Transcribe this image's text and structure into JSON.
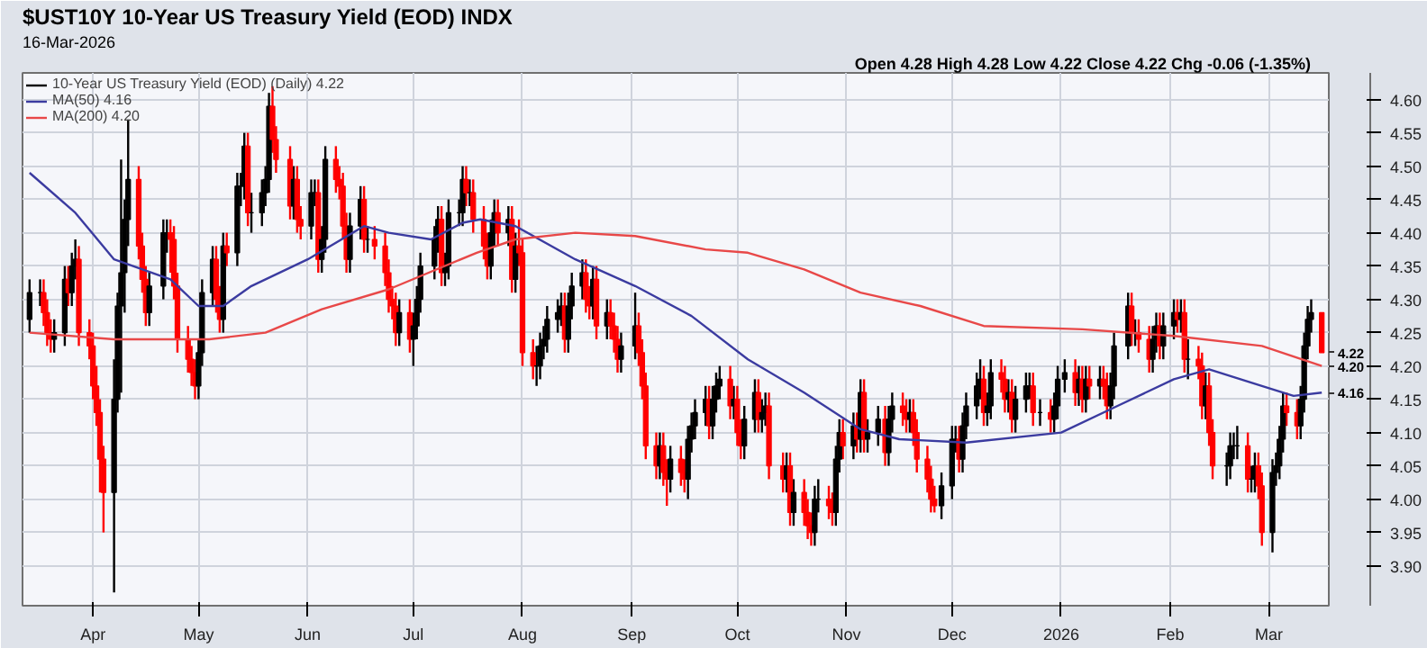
{
  "chart_data": {
    "type": "candlestick",
    "title": "$UST10Y 10-Year US Treasury Yield (EOD) INDX",
    "subtitle": "16-Mar-2026",
    "annotations": [
      "Open 4.28  High 4.28  Low 4.22  Close 4.22  Chg -0.06 (-1.35%)",
      "4.22",
      "4.16",
      "4.20"
    ],
    "xlim": [
      "2025-03-12",
      "2026-03-18"
    ],
    "xticks": [
      {
        "value": "2025-04-01",
        "label": "Apr"
      },
      {
        "value": "2025-05-01",
        "label": "May"
      },
      {
        "value": "2025-06-01",
        "label": "Jun"
      },
      {
        "value": "2025-07-01",
        "label": "Jul"
      },
      {
        "value": "2025-08-01",
        "label": "Aug"
      },
      {
        "value": "2025-09-01",
        "label": "Sep"
      },
      {
        "value": "2025-10-01",
        "label": "Oct"
      },
      {
        "value": "2025-11-01",
        "label": "Nov"
      },
      {
        "value": "2025-12-01",
        "label": "Dec"
      },
      {
        "value": "2026-01-01",
        "label": "2026"
      },
      {
        "value": "2026-02-01",
        "label": "Feb"
      },
      {
        "value": "2026-03-01",
        "label": "Mar"
      }
    ],
    "ylim": [
      3.84,
      4.64
    ],
    "yticks": [
      {
        "value": 3.9,
        "label": "3.90"
      },
      {
        "value": 3.95,
        "label": "3.95"
      },
      {
        "value": 4.0,
        "label": "4.00"
      },
      {
        "value": 4.05,
        "label": "4.05"
      },
      {
        "value": 4.1,
        "label": "4.10"
      },
      {
        "value": 4.15,
        "label": "4.15"
      },
      {
        "value": 4.2,
        "label": "4.20"
      },
      {
        "value": 4.25,
        "label": "4.25"
      },
      {
        "value": 4.3,
        "label": "4.30"
      },
      {
        "value": 4.35,
        "label": "4.35"
      },
      {
        "value": 4.4,
        "label": "4.40"
      },
      {
        "value": 4.45,
        "label": "4.45"
      },
      {
        "value": 4.5,
        "label": "4.50"
      },
      {
        "value": 4.55,
        "label": "4.55"
      },
      {
        "value": 4.6,
        "label": "4.60"
      }
    ],
    "grid": true,
    "legend": "top left",
    "series": [
      {
        "name": "10-Year US Treasury Yield (EOD) (Daily) 4.22",
        "x": [
          "2025-03-14",
          "2025-03-17",
          "2025-03-18",
          "2025-03-19",
          "2025-03-20",
          "2025-03-21",
          "2025-03-24",
          "2025-03-25",
          "2025-03-26",
          "2025-03-27",
          "2025-03-28",
          "2025-03-31",
          "2025-04-01",
          "2025-04-02",
          "2025-04-03",
          "2025-04-04",
          "2025-04-07",
          "2025-04-08",
          "2025-04-09",
          "2025-04-10",
          "2025-04-11",
          "2025-04-14",
          "2025-04-15",
          "2025-04-16",
          "2025-04-17",
          "2025-04-21",
          "2025-04-22",
          "2025-04-23",
          "2025-04-24",
          "2025-04-25",
          "2025-04-28",
          "2025-04-29",
          "2025-04-30",
          "2025-05-01",
          "2025-05-02",
          "2025-05-05",
          "2025-05-06",
          "2025-05-07",
          "2025-05-08",
          "2025-05-09",
          "2025-05-12",
          "2025-05-13",
          "2025-05-14",
          "2025-05-15",
          "2025-05-16",
          "2025-05-19",
          "2025-05-20",
          "2025-05-21",
          "2025-05-22",
          "2025-05-23",
          "2025-05-27",
          "2025-05-28",
          "2025-05-29",
          "2025-05-30",
          "2025-06-02",
          "2025-06-03",
          "2025-06-04",
          "2025-06-05",
          "2025-06-06",
          "2025-06-09",
          "2025-06-10",
          "2025-06-11",
          "2025-06-12",
          "2025-06-13",
          "2025-06-16",
          "2025-06-17",
          "2025-06-18",
          "2025-06-20",
          "2025-06-23",
          "2025-06-24",
          "2025-06-25",
          "2025-06-26",
          "2025-06-27",
          "2025-06-30",
          "2025-07-01",
          "2025-07-02",
          "2025-07-03",
          "2025-07-07",
          "2025-07-08",
          "2025-07-09",
          "2025-07-10",
          "2025-07-11",
          "2025-07-14",
          "2025-07-15",
          "2025-07-16",
          "2025-07-17",
          "2025-07-18",
          "2025-07-21",
          "2025-07-22",
          "2025-07-23",
          "2025-07-24",
          "2025-07-25",
          "2025-07-28",
          "2025-07-29",
          "2025-07-30",
          "2025-07-31",
          "2025-08-01",
          "2025-08-04",
          "2025-08-05",
          "2025-08-06",
          "2025-08-07",
          "2025-08-08",
          "2025-08-11",
          "2025-08-12",
          "2025-08-13",
          "2025-08-14",
          "2025-08-15",
          "2025-08-18",
          "2025-08-19",
          "2025-08-20",
          "2025-08-21",
          "2025-08-22",
          "2025-08-25",
          "2025-08-26",
          "2025-08-27",
          "2025-08-28",
          "2025-08-29",
          "2025-09-02",
          "2025-09-03",
          "2025-09-04",
          "2025-09-05",
          "2025-09-08",
          "2025-09-09",
          "2025-09-10",
          "2025-09-11",
          "2025-09-12",
          "2025-09-15",
          "2025-09-16",
          "2025-09-17",
          "2025-09-18",
          "2025-09-19",
          "2025-09-22",
          "2025-09-23",
          "2025-09-24",
          "2025-09-25",
          "2025-09-26",
          "2025-09-29",
          "2025-09-30",
          "2025-10-01",
          "2025-10-02",
          "2025-10-03",
          "2025-10-06",
          "2025-10-07",
          "2025-10-08",
          "2025-10-09",
          "2025-10-10",
          "2025-10-14",
          "2025-10-15",
          "2025-10-16",
          "2025-10-17",
          "2025-10-20",
          "2025-10-21",
          "2025-10-22",
          "2025-10-23",
          "2025-10-24",
          "2025-10-27",
          "2025-10-28",
          "2025-10-29",
          "2025-10-30",
          "2025-10-31",
          "2025-11-03",
          "2025-11-04",
          "2025-11-05",
          "2025-11-06",
          "2025-11-07",
          "2025-11-10",
          "2025-11-12",
          "2025-11-13",
          "2025-11-14",
          "2025-11-17",
          "2025-11-18",
          "2025-11-19",
          "2025-11-20",
          "2025-11-21",
          "2025-11-24",
          "2025-11-25",
          "2025-11-26",
          "2025-11-28",
          "2025-12-01",
          "2025-12-02",
          "2025-12-03",
          "2025-12-04",
          "2025-12-05",
          "2025-12-08",
          "2025-12-09",
          "2025-12-10",
          "2025-12-11",
          "2025-12-12",
          "2025-12-15",
          "2025-12-16",
          "2025-12-17",
          "2025-12-18",
          "2025-12-19",
          "2025-12-22",
          "2025-12-23",
          "2025-12-24",
          "2025-12-26",
          "2025-12-29",
          "2025-12-30",
          "2025-12-31",
          "2026-01-02",
          "2026-01-05",
          "2026-01-06",
          "2026-01-07",
          "2026-01-08",
          "2026-01-09",
          "2026-01-12",
          "2026-01-13",
          "2026-01-14",
          "2026-01-15",
          "2026-01-16",
          "2026-01-20",
          "2026-01-21",
          "2026-01-22",
          "2026-01-23",
          "2026-01-26",
          "2026-01-27",
          "2026-01-28",
          "2026-01-29",
          "2026-01-30",
          "2026-02-02",
          "2026-02-03",
          "2026-02-04",
          "2026-02-05",
          "2026-02-06",
          "2026-02-09",
          "2026-02-10",
          "2026-02-11",
          "2026-02-12",
          "2026-02-13",
          "2026-02-17",
          "2026-02-18",
          "2026-02-19",
          "2026-02-20",
          "2026-02-23",
          "2026-02-24",
          "2026-02-25",
          "2026-02-26",
          "2026-02-27",
          "2026-03-02",
          "2026-03-03",
          "2026-03-04",
          "2026-03-05",
          "2026-03-06",
          "2026-03-09",
          "2026-03-10",
          "2026-03-11",
          "2026-03-12",
          "2026-03-13",
          "2026-03-16"
        ],
        "ohlc": [
          [
            4.27,
            4.33,
            4.25,
            4.31
          ],
          [
            4.31,
            4.33,
            4.29,
            4.31
          ],
          [
            4.31,
            4.33,
            4.26,
            4.28
          ],
          [
            4.28,
            4.3,
            4.23,
            4.25
          ],
          [
            4.25,
            4.27,
            4.22,
            4.24
          ],
          [
            4.24,
            4.27,
            4.22,
            4.25
          ],
          [
            4.25,
            4.35,
            4.23,
            4.33
          ],
          [
            4.33,
            4.35,
            4.29,
            4.31
          ],
          [
            4.31,
            4.37,
            4.29,
            4.35
          ],
          [
            4.35,
            4.39,
            4.33,
            4.36
          ],
          [
            4.36,
            4.38,
            4.23,
            4.25
          ],
          [
            4.25,
            4.27,
            4.21,
            4.23
          ],
          [
            4.23,
            4.25,
            4.15,
            4.17
          ],
          [
            4.17,
            4.2,
            4.11,
            4.13
          ],
          [
            4.13,
            4.15,
            4.01,
            4.06
          ],
          [
            4.06,
            4.08,
            3.95,
            4.01
          ],
          [
            4.01,
            4.21,
            3.86,
            4.15
          ],
          [
            4.15,
            4.31,
            4.13,
            4.29
          ],
          [
            4.29,
            4.51,
            4.16,
            4.34
          ],
          [
            4.34,
            4.45,
            4.28,
            4.42
          ],
          [
            4.42,
            4.57,
            4.38,
            4.48
          ],
          [
            4.48,
            4.5,
            4.36,
            4.38
          ],
          [
            4.38,
            4.4,
            4.31,
            4.33
          ],
          [
            4.33,
            4.35,
            4.26,
            4.28
          ],
          [
            4.28,
            4.34,
            4.26,
            4.32
          ],
          [
            4.32,
            4.42,
            4.3,
            4.4
          ],
          [
            4.4,
            4.42,
            4.37,
            4.4
          ],
          [
            4.4,
            4.42,
            4.34,
            4.39
          ],
          [
            4.39,
            4.41,
            4.3,
            4.32
          ],
          [
            4.32,
            4.34,
            4.22,
            4.24
          ],
          [
            4.24,
            4.26,
            4.19,
            4.21
          ],
          [
            4.21,
            4.23,
            4.17,
            4.19
          ],
          [
            4.19,
            4.21,
            4.15,
            4.17
          ],
          [
            4.17,
            4.24,
            4.15,
            4.22
          ],
          [
            4.22,
            4.33,
            4.2,
            4.31
          ],
          [
            4.31,
            4.38,
            4.29,
            4.36
          ],
          [
            4.36,
            4.38,
            4.28,
            4.3
          ],
          [
            4.3,
            4.32,
            4.25,
            4.27
          ],
          [
            4.27,
            4.4,
            4.25,
            4.38
          ],
          [
            4.38,
            4.4,
            4.35,
            4.37
          ],
          [
            4.37,
            4.49,
            4.35,
            4.47
          ],
          [
            4.47,
            4.49,
            4.44,
            4.47
          ],
          [
            4.47,
            4.55,
            4.45,
            4.53
          ],
          [
            4.53,
            4.55,
            4.41,
            4.43
          ],
          [
            4.43,
            4.46,
            4.4,
            4.43
          ],
          [
            4.43,
            4.48,
            4.41,
            4.46
          ],
          [
            4.46,
            4.5,
            4.44,
            4.48
          ],
          [
            4.48,
            4.61,
            4.46,
            4.59
          ],
          [
            4.59,
            4.62,
            4.52,
            4.54
          ],
          [
            4.54,
            4.56,
            4.49,
            4.51
          ],
          [
            4.51,
            4.53,
            4.42,
            4.44
          ],
          [
            4.44,
            4.5,
            4.42,
            4.48
          ],
          [
            4.48,
            4.5,
            4.4,
            4.42
          ],
          [
            4.42,
            4.44,
            4.39,
            4.41
          ],
          [
            4.41,
            4.48,
            4.39,
            4.46
          ],
          [
            4.46,
            4.48,
            4.44,
            4.46
          ],
          [
            4.46,
            4.48,
            4.34,
            4.36
          ],
          [
            4.36,
            4.41,
            4.34,
            4.39
          ],
          [
            4.39,
            4.53,
            4.37,
            4.51
          ],
          [
            4.51,
            4.53,
            4.46,
            4.48
          ],
          [
            4.48,
            4.5,
            4.45,
            4.47
          ],
          [
            4.47,
            4.49,
            4.39,
            4.41
          ],
          [
            4.41,
            4.43,
            4.34,
            4.36
          ],
          [
            4.36,
            4.43,
            4.34,
            4.41
          ],
          [
            4.41,
            4.47,
            4.39,
            4.45
          ],
          [
            4.45,
            4.47,
            4.37,
            4.39
          ],
          [
            4.39,
            4.41,
            4.37,
            4.39
          ],
          [
            4.39,
            4.41,
            4.36,
            4.38
          ],
          [
            4.38,
            4.4,
            4.32,
            4.34
          ],
          [
            4.34,
            4.36,
            4.28,
            4.3
          ],
          [
            4.3,
            4.32,
            4.27,
            4.29
          ],
          [
            4.29,
            4.31,
            4.23,
            4.25
          ],
          [
            4.25,
            4.3,
            4.23,
            4.28
          ],
          [
            4.28,
            4.3,
            4.22,
            4.24
          ],
          [
            4.24,
            4.28,
            4.2,
            4.26
          ],
          [
            4.26,
            4.32,
            4.24,
            4.3
          ],
          [
            4.3,
            4.37,
            4.28,
            4.35
          ],
          [
            4.35,
            4.41,
            4.33,
            4.39
          ],
          [
            4.39,
            4.44,
            4.37,
            4.42
          ],
          [
            4.42,
            4.44,
            4.32,
            4.34
          ],
          [
            4.34,
            4.37,
            4.32,
            4.35
          ],
          [
            4.35,
            4.45,
            4.33,
            4.43
          ],
          [
            4.43,
            4.45,
            4.41,
            4.43
          ],
          [
            4.43,
            4.5,
            4.41,
            4.48
          ],
          [
            4.48,
            4.5,
            4.44,
            4.46
          ],
          [
            4.46,
            4.48,
            4.44,
            4.46
          ],
          [
            4.46,
            4.48,
            4.4,
            4.42
          ],
          [
            4.42,
            4.44,
            4.36,
            4.38
          ],
          [
            4.38,
            4.4,
            4.33,
            4.35
          ],
          [
            4.35,
            4.42,
            4.33,
            4.4
          ],
          [
            4.4,
            4.45,
            4.38,
            4.43
          ],
          [
            4.43,
            4.45,
            4.38,
            4.4
          ],
          [
            4.4,
            4.44,
            4.38,
            4.42
          ],
          [
            4.42,
            4.44,
            4.31,
            4.33
          ],
          [
            4.33,
            4.4,
            4.31,
            4.38
          ],
          [
            4.38,
            4.42,
            4.35,
            4.37
          ],
          [
            4.37,
            4.39,
            4.2,
            4.22
          ],
          [
            4.22,
            4.24,
            4.18,
            4.2
          ],
          [
            4.2,
            4.23,
            4.17,
            4.2
          ],
          [
            4.2,
            4.25,
            4.18,
            4.23
          ],
          [
            4.23,
            4.26,
            4.21,
            4.24
          ],
          [
            4.24,
            4.29,
            4.22,
            4.27
          ],
          [
            4.27,
            4.3,
            4.25,
            4.28
          ],
          [
            4.28,
            4.31,
            4.26,
            4.29
          ],
          [
            4.29,
            4.31,
            4.22,
            4.24
          ],
          [
            4.24,
            4.31,
            4.22,
            4.29
          ],
          [
            4.29,
            4.34,
            4.27,
            4.32
          ],
          [
            4.32,
            4.36,
            4.3,
            4.34
          ],
          [
            4.34,
            4.36,
            4.28,
            4.3
          ],
          [
            4.3,
            4.32,
            4.27,
            4.29
          ],
          [
            4.29,
            4.35,
            4.27,
            4.33
          ],
          [
            4.33,
            4.35,
            4.24,
            4.26
          ],
          [
            4.26,
            4.3,
            4.24,
            4.28
          ],
          [
            4.28,
            4.3,
            4.24,
            4.26
          ],
          [
            4.26,
            4.28,
            4.22,
            4.24
          ],
          [
            4.24,
            4.26,
            4.19,
            4.21
          ],
          [
            4.21,
            4.25,
            4.19,
            4.23
          ],
          [
            4.23,
            4.31,
            4.21,
            4.26
          ],
          [
            4.26,
            4.28,
            4.2,
            4.22
          ],
          [
            4.22,
            4.24,
            4.15,
            4.17
          ],
          [
            4.17,
            4.19,
            4.06,
            4.08
          ],
          [
            4.08,
            4.1,
            4.03,
            4.05
          ],
          [
            4.05,
            4.1,
            4.03,
            4.08
          ],
          [
            4.08,
            4.1,
            4.02,
            4.04
          ],
          [
            4.04,
            4.06,
            3.99,
            4.03
          ],
          [
            4.03,
            4.08,
            4.01,
            4.06
          ],
          [
            4.06,
            4.08,
            4.02,
            4.04
          ],
          [
            4.04,
            4.06,
            4.01,
            4.03
          ],
          [
            4.03,
            4.11,
            4.0,
            4.09
          ],
          [
            4.09,
            4.13,
            4.07,
            4.11
          ],
          [
            4.11,
            4.15,
            4.09,
            4.13
          ],
          [
            4.13,
            4.17,
            4.11,
            4.15
          ],
          [
            4.15,
            4.17,
            4.09,
            4.11
          ],
          [
            4.11,
            4.17,
            4.09,
            4.15
          ],
          [
            4.15,
            4.19,
            4.13,
            4.17
          ],
          [
            4.17,
            4.2,
            4.15,
            4.18
          ],
          [
            4.18,
            4.2,
            4.12,
            4.14
          ],
          [
            4.14,
            4.17,
            4.12,
            4.15
          ],
          [
            4.15,
            4.17,
            4.08,
            4.1
          ],
          [
            4.1,
            4.12,
            4.06,
            4.08
          ],
          [
            4.08,
            4.14,
            4.06,
            4.12
          ],
          [
            4.12,
            4.18,
            4.1,
            4.16
          ],
          [
            4.16,
            4.18,
            4.1,
            4.12
          ],
          [
            4.12,
            4.15,
            4.1,
            4.13
          ],
          [
            4.13,
            4.16,
            4.11,
            4.14
          ],
          [
            4.14,
            4.16,
            4.03,
            4.05
          ],
          [
            4.05,
            4.07,
            4.01,
            4.03
          ],
          [
            4.03,
            4.07,
            4.01,
            4.05
          ],
          [
            4.05,
            4.07,
            3.96,
            3.98
          ],
          [
            3.98,
            4.03,
            3.96,
            4.01
          ],
          [
            4.01,
            4.03,
            3.96,
            3.98
          ],
          [
            3.98,
            4.0,
            3.94,
            3.96
          ],
          [
            3.96,
            3.98,
            3.93,
            3.95
          ],
          [
            3.95,
            4.02,
            3.93,
            4.0
          ],
          [
            4.0,
            4.03,
            3.98,
            4.0
          ],
          [
            4.0,
            4.02,
            3.97,
            3.99
          ],
          [
            3.99,
            4.01,
            3.96,
            3.98
          ],
          [
            3.98,
            4.08,
            3.96,
            4.06
          ],
          [
            4.06,
            4.12,
            4.04,
            4.1
          ],
          [
            4.1,
            4.12,
            4.06,
            4.08
          ],
          [
            4.08,
            4.13,
            4.06,
            4.11
          ],
          [
            4.11,
            4.13,
            4.07,
            4.09
          ],
          [
            4.09,
            4.18,
            4.07,
            4.16
          ],
          [
            4.16,
            4.18,
            4.07,
            4.09
          ],
          [
            4.09,
            4.12,
            4.07,
            4.1
          ],
          [
            4.1,
            4.14,
            4.08,
            4.12
          ],
          [
            4.12,
            4.14,
            4.05,
            4.07
          ],
          [
            4.07,
            4.14,
            4.05,
            4.12
          ],
          [
            4.12,
            4.16,
            4.1,
            4.14
          ],
          [
            4.14,
            4.16,
            4.11,
            4.13
          ],
          [
            4.13,
            4.15,
            4.1,
            4.12
          ],
          [
            4.12,
            4.15,
            4.1,
            4.13
          ],
          [
            4.13,
            4.15,
            4.08,
            4.1
          ],
          [
            4.1,
            4.12,
            4.04,
            4.06
          ],
          [
            4.06,
            4.08,
            4.01,
            4.03
          ],
          [
            4.03,
            4.05,
            3.98,
            4.0
          ],
          [
            4.0,
            4.02,
            3.98,
            3.99
          ],
          [
            3.99,
            4.04,
            3.97,
            4.02
          ],
          [
            4.02,
            4.11,
            4.0,
            4.09
          ],
          [
            4.09,
            4.11,
            4.07,
            4.09
          ],
          [
            4.09,
            4.11,
            4.04,
            4.06
          ],
          [
            4.06,
            4.13,
            4.04,
            4.11
          ],
          [
            4.11,
            4.16,
            4.09,
            4.14
          ],
          [
            4.14,
            4.19,
            4.12,
            4.17
          ],
          [
            4.17,
            4.21,
            4.15,
            4.18
          ],
          [
            4.18,
            4.2,
            4.11,
            4.13
          ],
          [
            4.13,
            4.16,
            4.11,
            4.14
          ],
          [
            4.14,
            4.21,
            4.12,
            4.19
          ],
          [
            4.19,
            4.21,
            4.16,
            4.18
          ],
          [
            4.18,
            4.2,
            4.13,
            4.15
          ],
          [
            4.15,
            4.18,
            4.13,
            4.16
          ],
          [
            4.16,
            4.18,
            4.1,
            4.12
          ],
          [
            4.12,
            4.17,
            4.1,
            4.15
          ],
          [
            4.15,
            4.19,
            4.13,
            4.17
          ],
          [
            4.17,
            4.19,
            4.15,
            4.17
          ],
          [
            4.17,
            4.19,
            4.11,
            4.13
          ],
          [
            4.13,
            4.15,
            4.11,
            4.13
          ],
          [
            4.13,
            4.15,
            4.1,
            4.12
          ],
          [
            4.12,
            4.16,
            4.1,
            4.14
          ],
          [
            4.14,
            4.2,
            4.12,
            4.18
          ],
          [
            4.18,
            4.21,
            4.16,
            4.19
          ],
          [
            4.19,
            4.21,
            4.14,
            4.16
          ],
          [
            4.16,
            4.2,
            4.14,
            4.18
          ],
          [
            4.18,
            4.2,
            4.13,
            4.15
          ],
          [
            4.15,
            4.2,
            4.13,
            4.18
          ],
          [
            4.18,
            4.2,
            4.15,
            4.17
          ],
          [
            4.17,
            4.2,
            4.15,
            4.18
          ],
          [
            4.18,
            4.2,
            4.15,
            4.17
          ],
          [
            4.17,
            4.19,
            4.12,
            4.14
          ],
          [
            4.14,
            4.19,
            4.12,
            4.17
          ],
          [
            4.17,
            4.25,
            4.15,
            4.23
          ],
          [
            4.23,
            4.31,
            4.21,
            4.29
          ],
          [
            4.29,
            4.31,
            4.23,
            4.25
          ],
          [
            4.25,
            4.27,
            4.23,
            4.25
          ],
          [
            4.25,
            4.27,
            4.22,
            4.24
          ],
          [
            4.24,
            4.26,
            4.19,
            4.21
          ],
          [
            4.21,
            4.26,
            4.19,
            4.24
          ],
          [
            4.24,
            4.28,
            4.22,
            4.26
          ],
          [
            4.26,
            4.28,
            4.21,
            4.23
          ],
          [
            4.23,
            4.28,
            4.21,
            4.26
          ],
          [
            4.26,
            4.3,
            4.24,
            4.28
          ],
          [
            4.28,
            4.3,
            4.25,
            4.27
          ],
          [
            4.27,
            4.3,
            4.25,
            4.28
          ],
          [
            4.28,
            4.3,
            4.19,
            4.21
          ],
          [
            4.21,
            4.24,
            4.18,
            4.21
          ],
          [
            4.21,
            4.23,
            4.18,
            4.2
          ],
          [
            4.2,
            4.22,
            4.12,
            4.14
          ],
          [
            4.14,
            4.19,
            4.12,
            4.17
          ],
          [
            4.17,
            4.19,
            4.08,
            4.1
          ],
          [
            4.1,
            4.12,
            4.03,
            4.05
          ],
          [
            4.05,
            4.07,
            4.02,
            4.05
          ],
          [
            4.05,
            4.1,
            4.03,
            4.08
          ],
          [
            4.08,
            4.1,
            4.06,
            4.08
          ],
          [
            4.08,
            4.11,
            4.06,
            4.08
          ],
          [
            4.08,
            4.1,
            4.01,
            4.03
          ],
          [
            4.03,
            4.05,
            4.01,
            4.03
          ],
          [
            4.03,
            4.07,
            4.01,
            4.05
          ],
          [
            4.05,
            4.07,
            4.0,
            4.02
          ],
          [
            4.02,
            4.04,
            3.93,
            3.95
          ],
          [
            3.95,
            4.06,
            3.92,
            4.04
          ],
          [
            4.04,
            4.07,
            4.02,
            4.05
          ],
          [
            4.05,
            4.11,
            4.03,
            4.09
          ],
          [
            4.09,
            4.16,
            4.07,
            4.14
          ],
          [
            4.14,
            4.16,
            4.11,
            4.13
          ],
          [
            4.13,
            4.15,
            4.09,
            4.11
          ],
          [
            4.11,
            4.17,
            4.09,
            4.15
          ],
          [
            4.15,
            4.25,
            4.13,
            4.23
          ],
          [
            4.23,
            4.29,
            4.21,
            4.27
          ],
          [
            4.27,
            4.3,
            4.25,
            4.28
          ],
          [
            4.28,
            4.28,
            4.22,
            4.22
          ]
        ],
        "colors": [
          "#000000",
          "#000000",
          "#ff0000",
          "#ff0000",
          "#ff0000",
          "#000000",
          "#000000",
          "#ff0000",
          "#000000",
          "#000000",
          "#ff0000",
          "#ff0000",
          "#ff0000",
          "#ff0000",
          "#ff0000",
          "#ff0000",
          "#000000",
          "#000000",
          "#000000",
          "#000000",
          "#000000",
          "#ff0000",
          "#ff0000",
          "#ff0000",
          "#000000",
          "#000000",
          "#000000",
          "#ff0000",
          "#ff0000",
          "#ff0000",
          "#ff0000",
          "#ff0000",
          "#ff0000",
          "#000000",
          "#000000",
          "#000000",
          "#ff0000",
          "#ff0000",
          "#000000",
          "#ff0000",
          "#000000",
          "#000000",
          "#000000",
          "#ff0000",
          "#000000",
          "#000000",
          "#000000",
          "#000000",
          "#ff0000",
          "#ff0000",
          "#ff0000",
          "#000000",
          "#ff0000",
          "#ff0000",
          "#000000",
          "#000000",
          "#ff0000",
          "#000000",
          "#000000",
          "#ff0000",
          "#ff0000",
          "#ff0000",
          "#ff0000",
          "#000000",
          "#000000",
          "#ff0000",
          "#000000",
          "#ff0000",
          "#ff0000",
          "#ff0000",
          "#ff0000",
          "#ff0000",
          "#000000",
          "#ff0000",
          "#000000",
          "#000000",
          "#000000",
          "#000000",
          "#000000",
          "#ff0000",
          "#000000",
          "#000000",
          "#000000",
          "#000000",
          "#ff0000",
          "#000000",
          "#ff0000",
          "#ff0000",
          "#ff0000",
          "#000000",
          "#000000",
          "#ff0000",
          "#000000",
          "#ff0000",
          "#000000",
          "#ff0000",
          "#ff0000",
          "#ff0000",
          "#000000",
          "#000000",
          "#000000",
          "#000000",
          "#000000",
          "#000000",
          "#ff0000",
          "#000000",
          "#000000",
          "#000000",
          "#ff0000",
          "#ff0000",
          "#000000",
          "#ff0000",
          "#000000",
          "#ff0000",
          "#ff0000",
          "#ff0000",
          "#000000",
          "#000000",
          "#ff0000",
          "#ff0000",
          "#ff0000",
          "#ff0000",
          "#000000",
          "#ff0000",
          "#ff0000",
          "#000000",
          "#ff0000",
          "#ff0000",
          "#000000",
          "#000000",
          "#000000",
          "#000000",
          "#ff0000",
          "#000000",
          "#000000",
          "#000000",
          "#ff0000",
          "#000000",
          "#ff0000",
          "#ff0000",
          "#000000",
          "#000000",
          "#ff0000",
          "#000000",
          "#000000",
          "#ff0000",
          "#ff0000",
          "#000000",
          "#ff0000",
          "#000000",
          "#ff0000",
          "#ff0000",
          "#ff0000",
          "#000000",
          "#000000",
          "#ff0000",
          "#ff0000",
          "#000000",
          "#000000",
          "#ff0000",
          "#000000",
          "#ff0000",
          "#000000",
          "#ff0000",
          "#000000",
          "#000000",
          "#ff0000",
          "#000000",
          "#000000",
          "#ff0000",
          "#ff0000",
          "#000000",
          "#ff0000",
          "#ff0000",
          "#ff0000",
          "#ff0000",
          "#ff0000",
          "#000000",
          "#000000",
          "#000000",
          "#ff0000",
          "#000000",
          "#000000",
          "#000000",
          "#000000",
          "#ff0000",
          "#000000",
          "#000000",
          "#ff0000",
          "#ff0000",
          "#000000",
          "#ff0000",
          "#000000",
          "#000000",
          "#000000",
          "#ff0000",
          "#000000",
          "#ff0000",
          "#000000",
          "#000000",
          "#000000",
          "#ff0000",
          "#000000",
          "#ff0000",
          "#000000",
          "#ff0000",
          "#000000",
          "#ff0000",
          "#ff0000",
          "#000000",
          "#000000",
          "#000000",
          "#ff0000",
          "#000000",
          "#ff0000",
          "#ff0000",
          "#000000",
          "#000000",
          "#ff0000",
          "#000000",
          "#000000",
          "#ff0000",
          "#000000",
          "#ff0000",
          "#000000",
          "#ff0000",
          "#ff0000",
          "#000000",
          "#ff0000",
          "#ff0000",
          "#000000",
          "#000000",
          "#000000",
          "#000000",
          "#ff0000",
          "#000000",
          "#000000",
          "#ff0000",
          "#ff0000",
          "#000000",
          "#000000",
          "#000000",
          "#000000",
          "#ff0000",
          "#ff0000",
          "#000000",
          "#000000",
          "#000000",
          "#000000",
          "#ff0000"
        ]
      },
      {
        "name": "MA(50) 4.16",
        "type": "line",
        "color": "#3b3ba0",
        "x": [
          "2025-03-14",
          "2025-03-27",
          "2025-04-07",
          "2025-04-23",
          "2025-05-01",
          "2025-05-08",
          "2025-05-16",
          "2025-06-01",
          "2025-06-17",
          "2025-06-24",
          "2025-07-06",
          "2025-07-15",
          "2025-07-20",
          "2025-07-30",
          "2025-08-16",
          "2025-09-02",
          "2025-09-18",
          "2025-10-04",
          "2025-10-20",
          "2025-11-05",
          "2025-11-16",
          "2025-12-05",
          "2026-01-01",
          "2026-01-17",
          "2026-02-02",
          "2026-02-12",
          "2026-02-27",
          "2026-03-08",
          "2026-03-16"
        ],
        "values": [
          4.49,
          4.43,
          4.36,
          4.33,
          4.29,
          4.29,
          4.32,
          4.36,
          4.41,
          4.4,
          4.39,
          4.415,
          4.42,
          4.41,
          4.36,
          4.32,
          4.275,
          4.21,
          4.16,
          4.105,
          4.09,
          4.085,
          4.1,
          4.14,
          4.18,
          4.195,
          4.17,
          4.155,
          4.16
        ]
      },
      {
        "name": "MA(200) 4.20",
        "type": "line",
        "color": "#e84848",
        "x": [
          "2025-03-14",
          "2025-04-07",
          "2025-05-04",
          "2025-05-20",
          "2025-06-05",
          "2025-06-24",
          "2025-07-19",
          "2025-07-30",
          "2025-08-16",
          "2025-09-02",
          "2025-09-22",
          "2025-10-04",
          "2025-10-20",
          "2025-11-05",
          "2025-11-22",
          "2025-12-10",
          "2026-01-07",
          "2026-02-02",
          "2026-02-27",
          "2026-03-16"
        ],
        "values": [
          4.25,
          4.24,
          4.24,
          4.25,
          4.285,
          4.315,
          4.37,
          4.39,
          4.4,
          4.395,
          4.375,
          4.37,
          4.345,
          4.31,
          4.29,
          4.26,
          4.255,
          4.245,
          4.23,
          4.2
        ]
      }
    ]
  }
}
